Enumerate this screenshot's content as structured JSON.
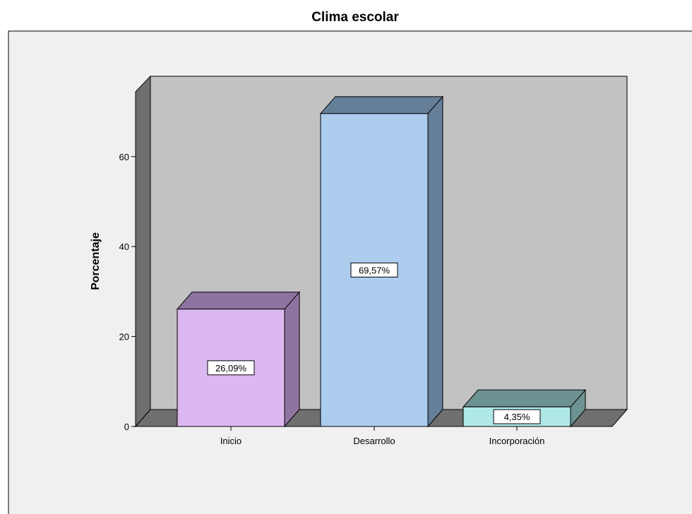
{
  "chart_data": {
    "type": "bar",
    "title": "Clima escolar",
    "ylabel": "Porcentaje",
    "xlabel": "",
    "categories": [
      "Inicio",
      "Desarrollo",
      "Incorporación"
    ],
    "values": [
      26.09,
      69.57,
      4.35
    ],
    "value_labels": [
      "26,09%",
      "69,57%",
      "4,35%"
    ],
    "yticks": [
      0,
      20,
      40,
      60
    ],
    "ylim": [
      0,
      75
    ],
    "grid": false,
    "legend": "none",
    "style": "3d",
    "colors": {
      "bars": [
        {
          "front": "#dcb8f2",
          "side": "#8e74a0",
          "top": "#8e74a0"
        },
        {
          "front": "#accdee",
          "side": "#657f99",
          "top": "#657f99"
        },
        {
          "front": "#b0e8e8",
          "side": "#6d9292",
          "top": "#6d9292"
        }
      ],
      "back_wall": "#c2c2c2",
      "left_wall": "#6f6f6f",
      "floor": "#6f6f6f",
      "frame_background": "#f0f0f0"
    }
  }
}
